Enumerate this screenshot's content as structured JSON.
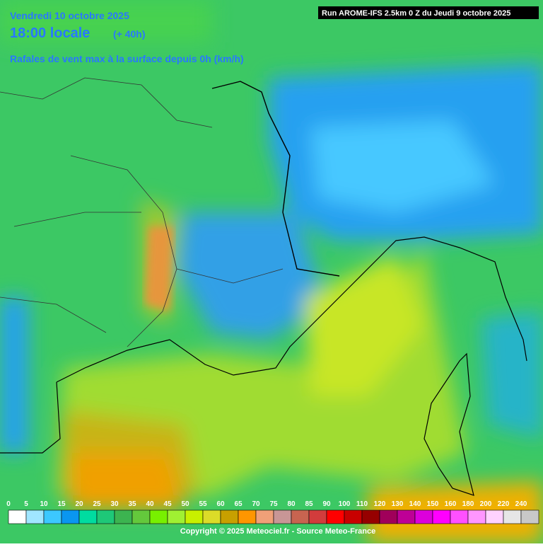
{
  "header": {
    "date": "Vendredi 10 octobre 2025",
    "time": "18:00 locale",
    "lead": "(+ 40h)",
    "parameter": "Rafales de vent max à la surface depuis 0h (km/h)",
    "run": "Run AROME-IFS 2.5km 0 Z du Jeudi 9 octobre 2025"
  },
  "legend": [
    {
      "label": 0,
      "color": "#ffffff"
    },
    {
      "label": 5,
      "color": "#a0e6ff"
    },
    {
      "label": 10,
      "color": "#3cc8ff"
    },
    {
      "label": 15,
      "color": "#0a96f0"
    },
    {
      "label": 20,
      "color": "#00dca0"
    },
    {
      "label": 25,
      "color": "#1ec878"
    },
    {
      "label": 30,
      "color": "#3cb450"
    },
    {
      "label": 35,
      "color": "#64c83c"
    },
    {
      "label": 40,
      "color": "#78f000"
    },
    {
      "label": 45,
      "color": "#a0f032"
    },
    {
      "label": 50,
      "color": "#c8f000"
    },
    {
      "label": 55,
      "color": "#dcdc28"
    },
    {
      "label": 60,
      "color": "#c8a000"
    },
    {
      "label": 65,
      "color": "#ff9600"
    },
    {
      "label": 70,
      "color": "#f0a078"
    },
    {
      "label": 75,
      "color": "#c89696"
    },
    {
      "label": 80,
      "color": "#c86450"
    },
    {
      "label": 85,
      "color": "#d23c3c"
    },
    {
      "label": 90,
      "color": "#ff0000"
    },
    {
      "label": 100,
      "color": "#c80000"
    },
    {
      "label": 110,
      "color": "#960000"
    },
    {
      "label": 120,
      "color": "#a0005a"
    },
    {
      "label": 130,
      "color": "#be0096"
    },
    {
      "label": 140,
      "color": "#dc00dc"
    },
    {
      "label": 150,
      "color": "#ff00ff"
    },
    {
      "label": 160,
      "color": "#ff50ff"
    },
    {
      "label": 180,
      "color": "#ff96ff"
    },
    {
      "label": 200,
      "color": "#ffd2ff"
    },
    {
      "label": 220,
      "color": "#e6e6e6"
    },
    {
      "label": 240,
      "color": "#c8c8c8"
    }
  ],
  "footer": {
    "copyright": "Copyright © 2025 Meteociel.fr - Source Meteo-France"
  }
}
